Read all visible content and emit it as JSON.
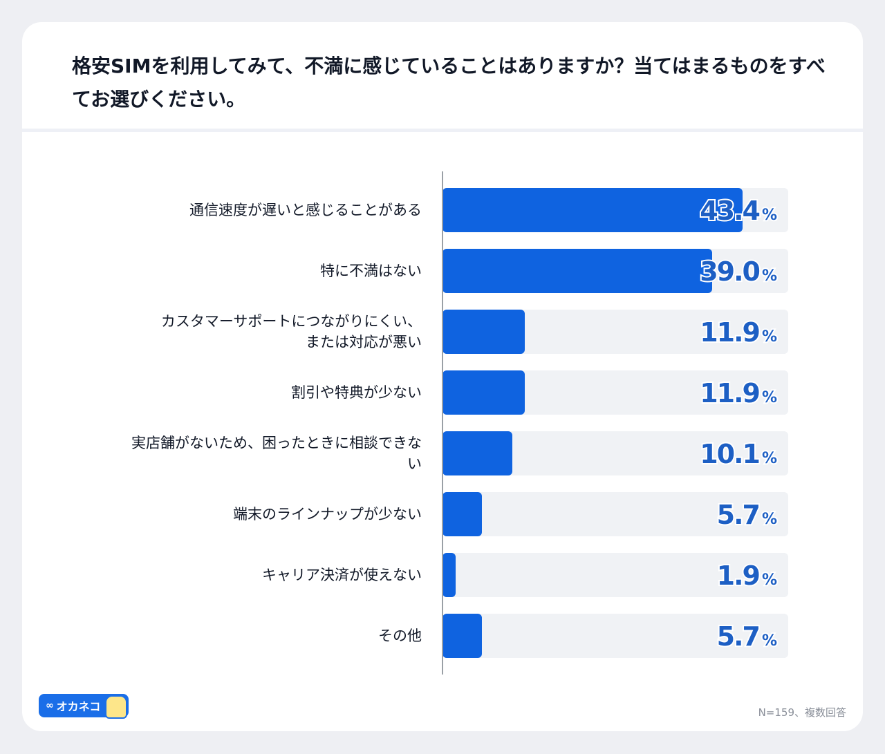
{
  "title": "格安SIMを利用してみて、不満に感じていることはありますか？当てはまるものをすべてお選びください。",
  "chart_data": {
    "type": "bar",
    "orientation": "horizontal",
    "categories": [
      "通信速度が遅いと感じることがある",
      "特に不満はない",
      "カスタマーサポートにつながりにくい、\nまたは対応が悪い",
      "割引や特典が少ない",
      "実店舗がないため、困ったときに相談できな\nい",
      "端末のラインナップが少ない",
      "キャリア決済が使えない",
      "その他"
    ],
    "values": [
      43.4,
      39.0,
      11.9,
      11.9,
      10.1,
      5.7,
      1.9,
      5.7
    ],
    "value_labels": [
      "43.4",
      "39.0",
      "11.9",
      "11.9",
      "10.1",
      "5.7",
      "1.9",
      "5.7"
    ],
    "unit": "%",
    "xlim": [
      0,
      50
    ],
    "bar_color": "#0f63e0",
    "track_color": "#f0f2f5",
    "label_color": "#1d5fc4"
  },
  "footer": {
    "logo_text": "オカネコ",
    "note": "N=159、複数回答"
  }
}
